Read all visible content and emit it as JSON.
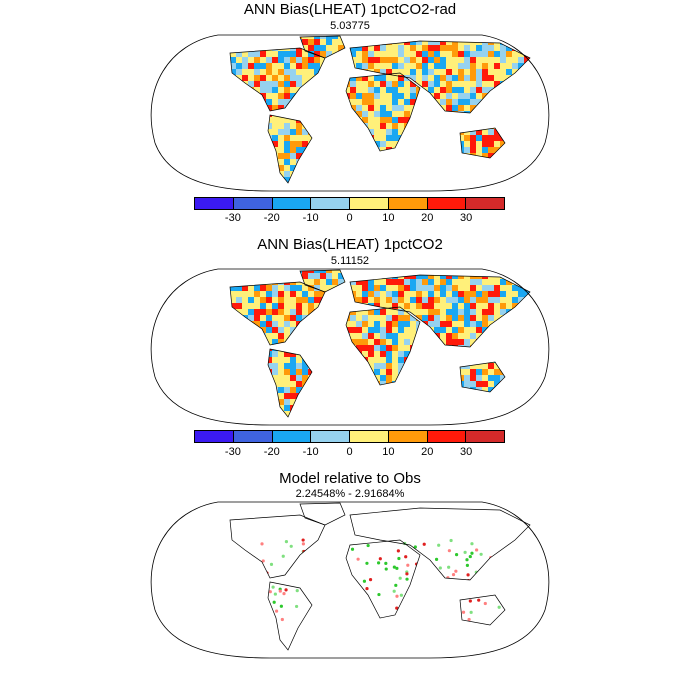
{
  "panels": [
    {
      "title": "ANN Bias(LHEAT) 1pctCO2-rad",
      "subtitle": "5.03775"
    },
    {
      "title": "ANN Bias(LHEAT) 1pctCO2",
      "subtitle": "5.11152"
    },
    {
      "title": "Model relative to Obs",
      "subtitle": "2.24548% - 2.91684%"
    }
  ],
  "colorbar": {
    "colors": [
      "#3b1af2",
      "#3f63e0",
      "#1aa7f2",
      "#96d2ef",
      "#fff07a",
      "#ff9a0a",
      "#ff1a0a",
      "#d42a2a"
    ],
    "tick_labels": [
      "-30",
      "-20",
      "-10",
      "0",
      "10",
      "20",
      "30"
    ]
  },
  "map_styles": {
    "bias_colors": [
      "#fff07a",
      "#ff9a0a",
      "#96d2ef",
      "#ff1a0a",
      "#1aa7f2",
      "#fff07a"
    ],
    "relative_colors": [
      "#e02020",
      "#2dc82d",
      "#ff8080",
      "#80e080"
    ]
  }
}
